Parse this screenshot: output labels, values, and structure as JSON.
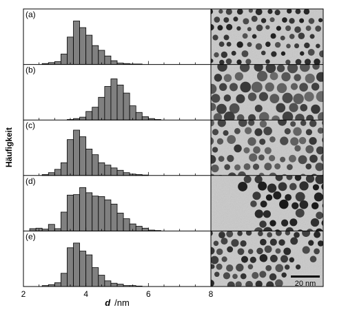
{
  "figure": {
    "ylabel": "Häufigkeit",
    "xlabel_var": "d",
    "xlabel_unit": "/nm",
    "scale_bar_label": "20 nm"
  },
  "chart_data": [
    {
      "type": "bar",
      "panel": "(a)",
      "bin_width": 0.2,
      "x": [
        2.6,
        2.8,
        3.0,
        3.2,
        3.4,
        3.6,
        3.8,
        4.0,
        4.2,
        4.4,
        4.6,
        4.8,
        5.0,
        5.2,
        5.4,
        5.6,
        5.8,
        6.0,
        6.2,
        6.4
      ],
      "values": [
        0.02,
        0.04,
        0.06,
        0.22,
        0.58,
        0.92,
        0.78,
        0.62,
        0.4,
        0.3,
        0.18,
        0.08,
        0.03,
        0.02,
        0.01,
        0.01,
        0,
        0,
        0,
        0
      ],
      "xlim": [
        2,
        8
      ],
      "xticks": [
        "2",
        "4",
        "6",
        "8"
      ],
      "grid": false,
      "legend": "none"
    },
    {
      "type": "bar",
      "panel": "(b)",
      "bin_width": 0.2,
      "x": [
        2.6,
        2.8,
        3.0,
        3.2,
        3.4,
        3.6,
        3.8,
        4.0,
        4.2,
        4.4,
        4.6,
        4.8,
        5.0,
        5.2,
        5.4,
        5.6,
        5.8,
        6.0,
        6.2,
        6.4
      ],
      "values": [
        0,
        0,
        0,
        0,
        0.01,
        0.03,
        0.06,
        0.18,
        0.27,
        0.48,
        0.71,
        0.87,
        0.74,
        0.57,
        0.3,
        0.16,
        0.07,
        0.03,
        0.01,
        0
      ],
      "xlim": [
        2,
        8
      ],
      "xticks": [
        "2",
        "4",
        "6",
        "8"
      ],
      "grid": false,
      "legend": "none"
    },
    {
      "type": "bar",
      "panel": "(c)",
      "bin_width": 0.2,
      "x": [
        2.6,
        2.8,
        3.0,
        3.2,
        3.4,
        3.6,
        3.8,
        4.0,
        4.2,
        4.4,
        4.6,
        4.8,
        5.0,
        5.2,
        5.4,
        5.6,
        5.8,
        6.0,
        6.2,
        6.4
      ],
      "values": [
        0.02,
        0.06,
        0.13,
        0.27,
        0.76,
        0.96,
        0.82,
        0.56,
        0.44,
        0.27,
        0.22,
        0.16,
        0.11,
        0.06,
        0.03,
        0.02,
        0.01,
        0,
        0,
        0
      ],
      "xlim": [
        2,
        8
      ],
      "xticks": [
        "2",
        "4",
        "6",
        "8"
      ],
      "grid": false,
      "legend": "none"
    },
    {
      "type": "bar",
      "panel": "(d)",
      "bin_width": 0.2,
      "x": [
        2.2,
        2.4,
        2.6,
        2.8,
        3.0,
        3.2,
        3.4,
        3.6,
        3.8,
        4.0,
        4.2,
        4.4,
        4.6,
        4.8,
        5.0,
        5.2,
        5.4,
        5.6,
        5.8,
        6.0,
        6.2,
        6.4
      ],
      "values": [
        0.05,
        0.06,
        0.04,
        0.14,
        0.05,
        0.4,
        0.76,
        0.77,
        0.92,
        0.81,
        0.74,
        0.73,
        0.66,
        0.57,
        0.38,
        0.26,
        0.15,
        0.1,
        0.06,
        0.02,
        0.01,
        0
      ],
      "xlim": [
        2,
        8
      ],
      "xticks": [
        "2",
        "4",
        "6",
        "8"
      ],
      "grid": false,
      "legend": "none"
    },
    {
      "type": "bar",
      "panel": "(e)",
      "bin_width": 0.2,
      "x": [
        2.6,
        2.8,
        3.0,
        3.2,
        3.4,
        3.6,
        3.8,
        4.0,
        4.2,
        4.4,
        4.6,
        4.8,
        5.0,
        5.2,
        5.4,
        5.6,
        5.8,
        6.0,
        6.2,
        6.4
      ],
      "values": [
        0.02,
        0.04,
        0.08,
        0.28,
        0.82,
        0.92,
        0.75,
        0.67,
        0.4,
        0.24,
        0.12,
        0.07,
        0.05,
        0.02,
        0.02,
        0.01,
        0,
        0,
        0,
        0
      ],
      "xlim": [
        2,
        8
      ],
      "xticks": [
        "2",
        "4",
        "6",
        "8"
      ],
      "grid": false,
      "legend": "none"
    }
  ],
  "style": {
    "bar_fill": "#808080",
    "bar_stroke": "#000000",
    "tem_background": "#c9c9c9",
    "particle_color": "#222222"
  }
}
